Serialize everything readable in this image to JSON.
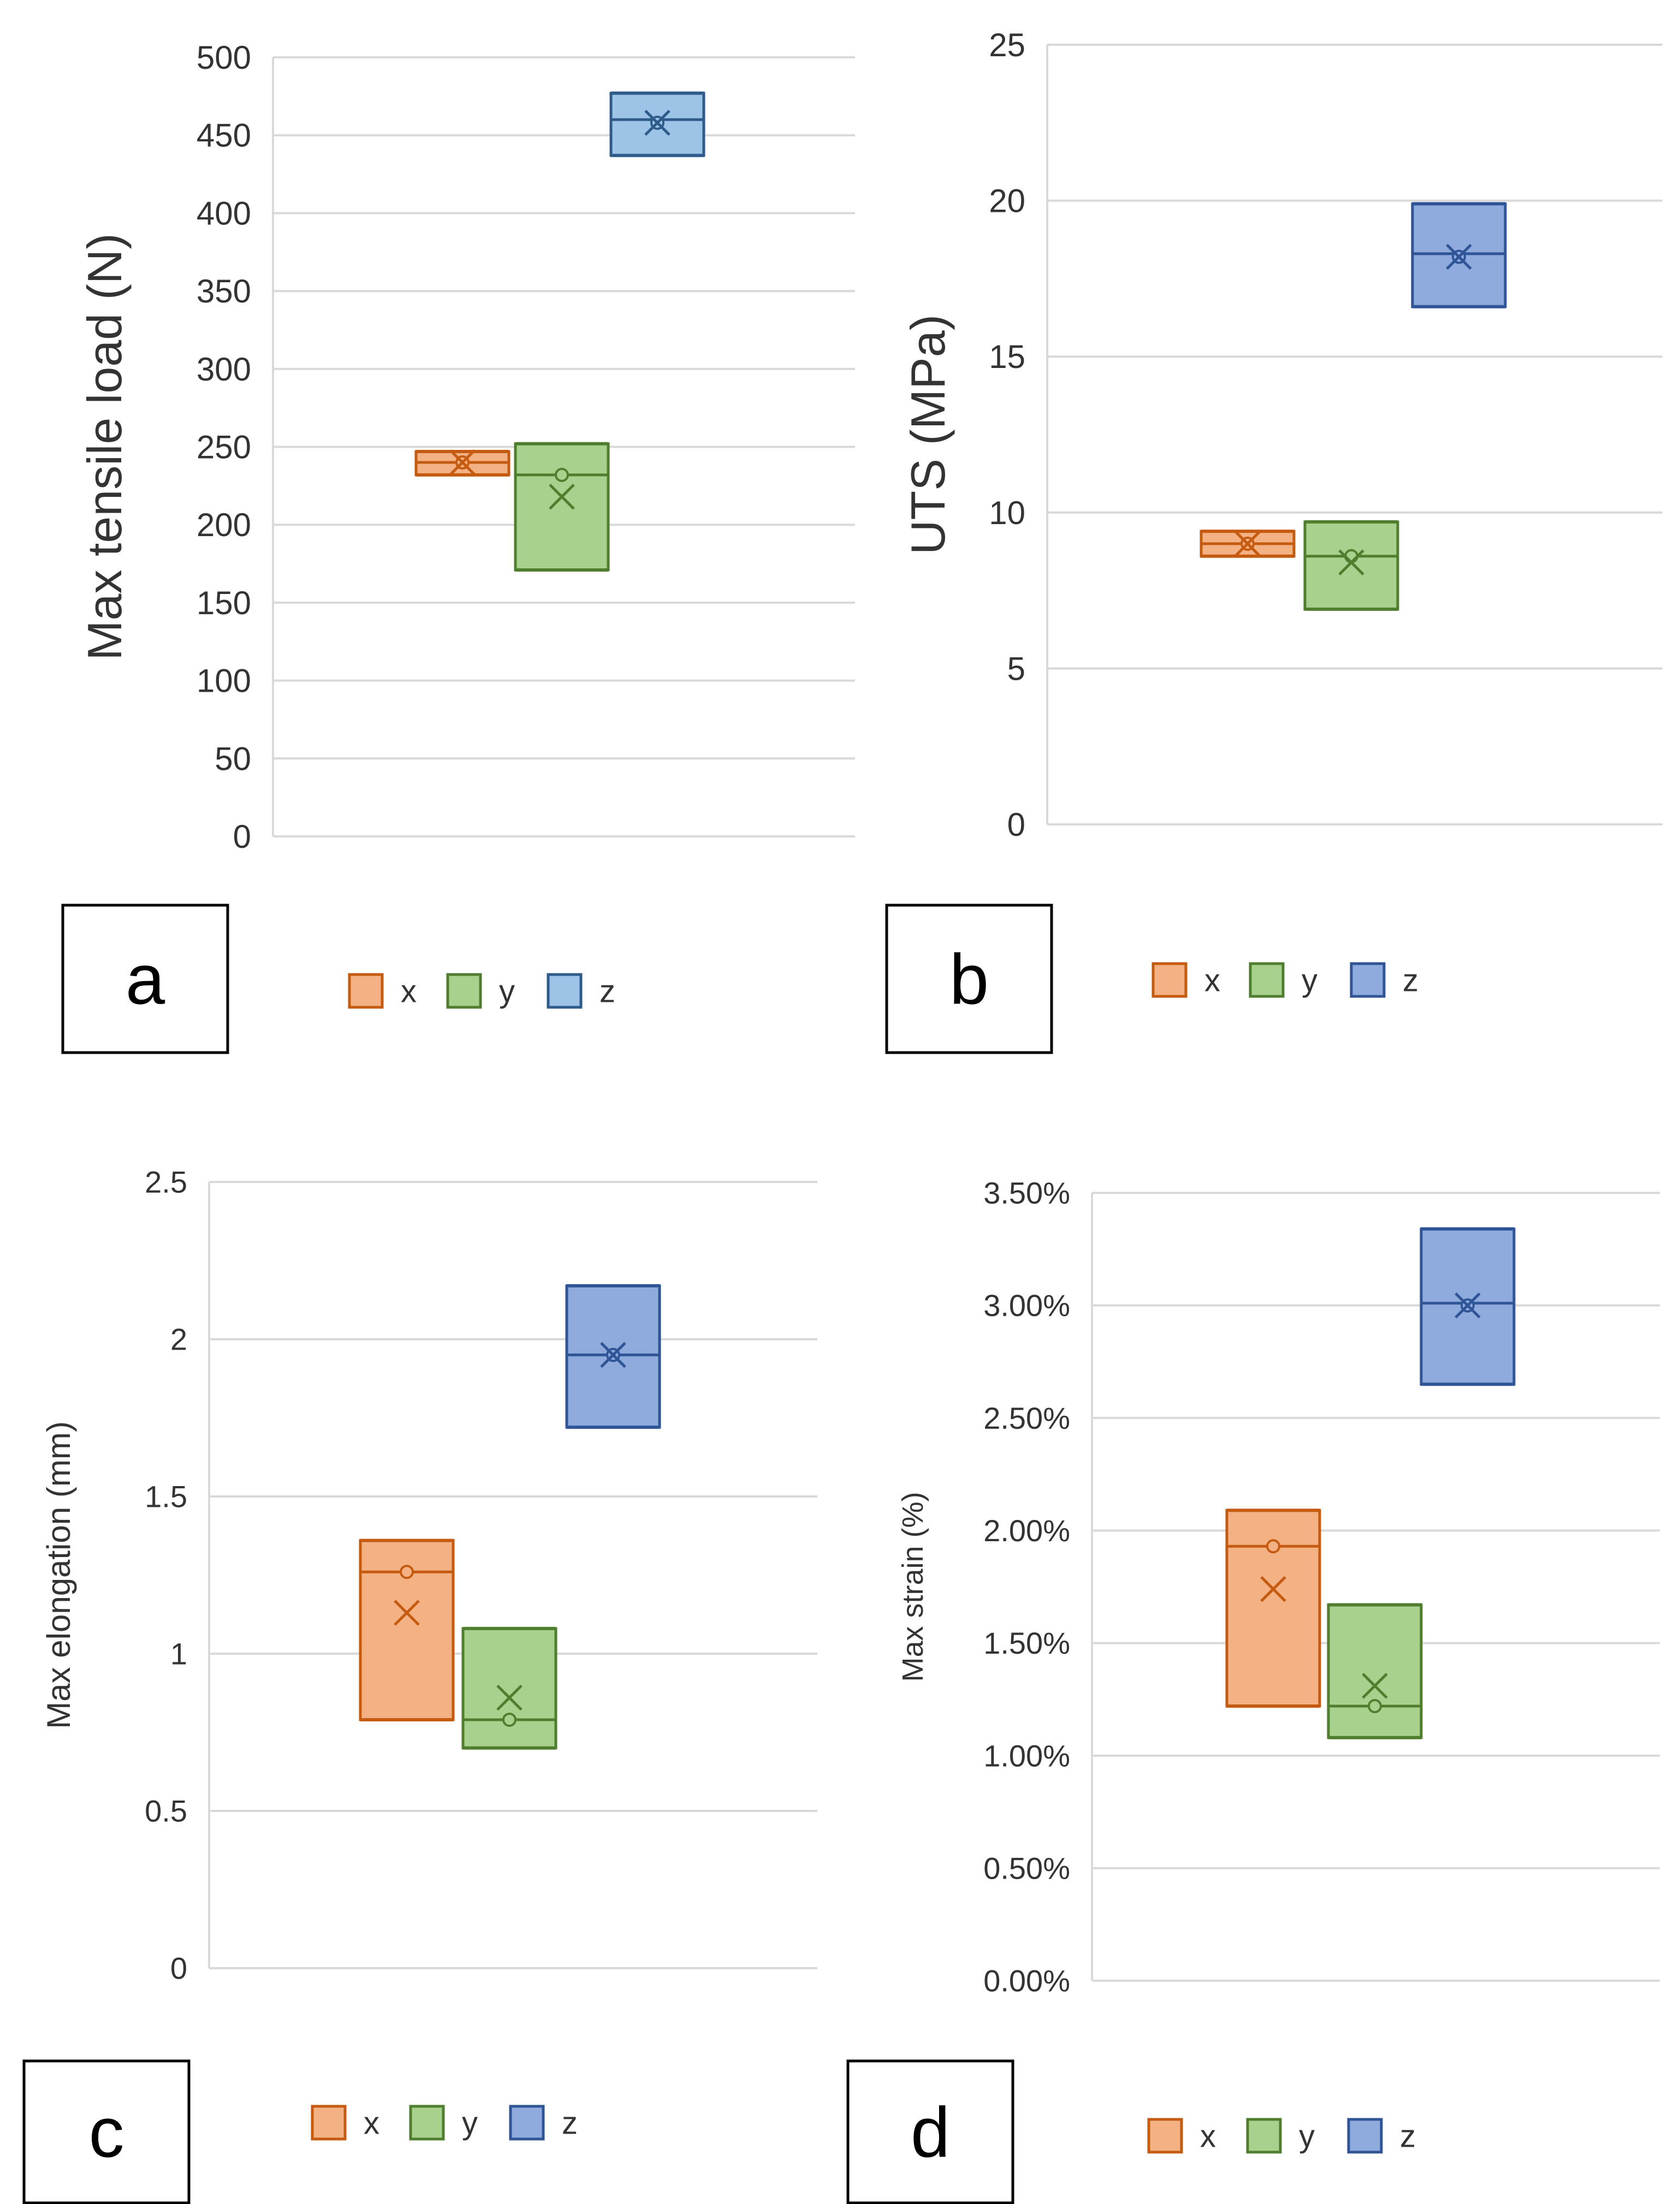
{
  "chart_data": [
    {
      "type": "box",
      "panel_label": "a",
      "ylabel": "Max tensile load (N)",
      "ylim": [
        0,
        500
      ],
      "yticks": [
        0,
        50,
        100,
        150,
        200,
        250,
        300,
        350,
        400,
        450,
        500
      ],
      "tick_labels": [
        "0",
        "50",
        "100",
        "150",
        "200",
        "250",
        "300",
        "350",
        "400",
        "450",
        "500"
      ],
      "grid": true,
      "legend_position": "bottom",
      "series": [
        {
          "name": "x",
          "q1": 232,
          "median": 240,
          "q3": 247,
          "mean": 240
        },
        {
          "name": "y",
          "q1": 171,
          "median": 232,
          "q3": 252,
          "mean": 218,
          "point": 232
        },
        {
          "name": "z",
          "q1": 437,
          "median": 460,
          "q3": 477,
          "mean": 458
        }
      ]
    },
    {
      "type": "box",
      "panel_label": "b",
      "ylabel": "UTS (MPa)",
      "ylim": [
        0,
        25
      ],
      "yticks": [
        0,
        5,
        10,
        15,
        20,
        25
      ],
      "tick_labels": [
        "0",
        "5",
        "10",
        "15",
        "20",
        "25"
      ],
      "grid": true,
      "legend_position": "bottom",
      "series": [
        {
          "name": "x",
          "q1": 8.6,
          "median": 9.0,
          "q3": 9.4,
          "mean": 9.0
        },
        {
          "name": "y",
          "q1": 6.9,
          "median": 8.6,
          "q3": 9.7,
          "mean": 8.4,
          "point": 8.6
        },
        {
          "name": "z",
          "q1": 16.6,
          "median": 18.3,
          "q3": 19.9,
          "mean": 18.2
        }
      ]
    },
    {
      "type": "box",
      "panel_label": "c",
      "ylabel": "Max elongation (mm)",
      "ylim": [
        0,
        2.5
      ],
      "yticks": [
        0,
        0.5,
        1,
        1.5,
        2,
        2.5
      ],
      "tick_labels": [
        "0",
        "0.5",
        "1",
        "1.5",
        "2",
        "2.5"
      ],
      "grid": true,
      "legend_position": "bottom",
      "series": [
        {
          "name": "x",
          "q1": 0.79,
          "median": 1.26,
          "q3": 1.36,
          "mean": 1.13,
          "point": 1.26
        },
        {
          "name": "y",
          "q1": 0.7,
          "median": 0.79,
          "q3": 1.08,
          "mean": 0.86,
          "point": 0.79
        },
        {
          "name": "z",
          "q1": 1.72,
          "median": 1.95,
          "q3": 2.17,
          "mean": 1.95
        }
      ]
    },
    {
      "type": "box",
      "panel_label": "d",
      "ylabel": "Max strain (%)",
      "ylim": [
        0,
        3.5
      ],
      "yticks": [
        0,
        0.5,
        1,
        1.5,
        2,
        2.5,
        3,
        3.5
      ],
      "tick_labels": [
        "0.00%",
        "0.50%",
        "1.00%",
        "1.50%",
        "2.00%",
        "2.50%",
        "3.00%",
        "3.50%"
      ],
      "grid": true,
      "legend_position": "bottom",
      "series": [
        {
          "name": "x",
          "q1": 1.22,
          "median": 1.93,
          "q3": 2.09,
          "mean": 1.74,
          "point": 1.93
        },
        {
          "name": "y",
          "q1": 1.08,
          "median": 1.22,
          "q3": 1.67,
          "mean": 1.31,
          "point": 1.22
        },
        {
          "name": "z",
          "q1": 2.65,
          "median": 3.01,
          "q3": 3.34,
          "mean": 3.0
        }
      ]
    }
  ],
  "legend_labels": [
    "x",
    "y",
    "z"
  ],
  "colors": {
    "x_fill": "#f4b183",
    "x_stroke": "#c55a11",
    "y_fill": "#a9d18e",
    "y_stroke": "#4f7f2e",
    "z_fill_light": "#9dc3e6",
    "z_stroke_light": "#2e5b8a",
    "z_fill": "#8faadc",
    "z_stroke": "#2f5597",
    "grid": "#d9d9d9",
    "frame": "#000000"
  }
}
